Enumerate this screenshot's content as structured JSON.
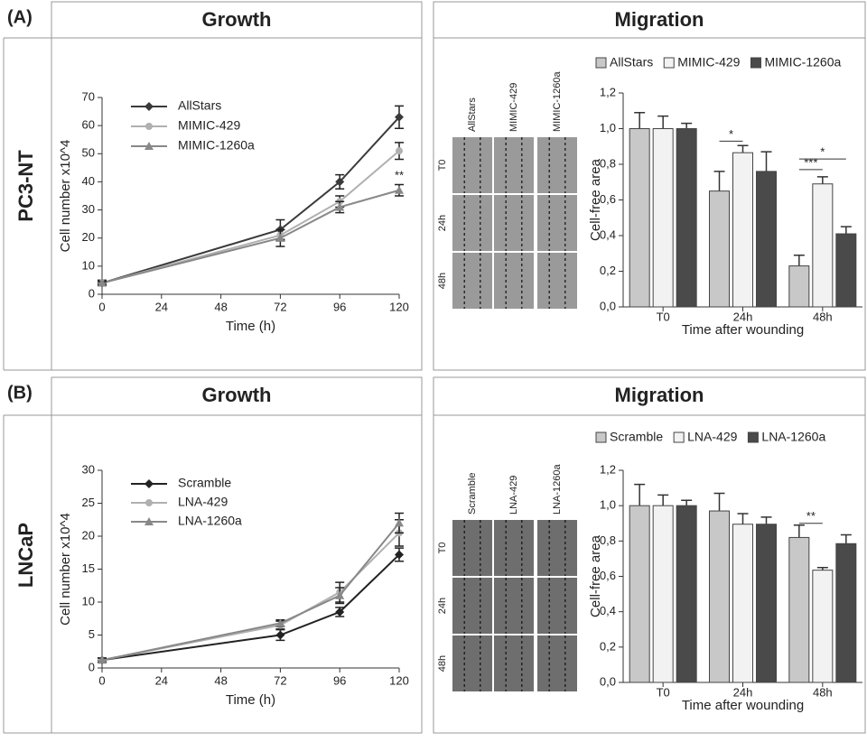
{
  "panels": [
    {
      "label": "(A)",
      "row_label": "PC3-NT",
      "growth_title": "Growth",
      "migration_title": "Migration",
      "image_columns": [
        "AllStars",
        "MIMIC-429",
        "MIMIC-1260a"
      ],
      "image_rows": [
        "T0",
        "24h",
        "48h"
      ]
    },
    {
      "label": "(B)",
      "row_label": "LNCaP",
      "growth_title": "Growth",
      "migration_title": "Migration",
      "image_columns": [
        "Scramble",
        "LNA-429",
        "LNA-1260a"
      ],
      "image_rows": [
        "T0",
        "24h",
        "48h"
      ]
    }
  ],
  "chart_data": [
    {
      "type": "line",
      "x_label": "Time (h)",
      "y_label": "Cell number x10^4",
      "x": [
        0,
        72,
        96,
        120
      ],
      "xlim": [
        0,
        120
      ],
      "xticks": [
        0,
        24,
        48,
        72,
        96,
        120
      ],
      "ylim": [
        0,
        70
      ],
      "yticks": [
        0,
        10,
        20,
        30,
        40,
        50,
        60,
        70
      ],
      "series": [
        {
          "name": "AllStars",
          "color": "#3a3a3a",
          "marker": "diamond",
          "values": [
            4,
            23,
            40,
            63
          ],
          "errors": [
            1,
            3.5,
            2.5,
            4
          ]
        },
        {
          "name": "MIMIC-429",
          "color": "#b0b0b0",
          "marker": "circle",
          "values": [
            4,
            21,
            33,
            51
          ],
          "errors": [
            0.5,
            2,
            2,
            3
          ]
        },
        {
          "name": "MIMIC-1260a",
          "color": "#888888",
          "marker": "triangle",
          "values": [
            4,
            20,
            31,
            37
          ],
          "errors": [
            0.5,
            3,
            2,
            2
          ]
        }
      ],
      "annotations": [
        {
          "text": "**",
          "x": 120,
          "y": 42
        }
      ]
    },
    {
      "type": "bar",
      "x_label": "Time after wounding",
      "y_label": "Cell-free area",
      "categories": [
        "T0",
        "24h",
        "48h"
      ],
      "ylim": [
        0,
        1.2
      ],
      "yticks": [
        {
          "value": 0,
          "label": "0,0"
        },
        {
          "value": 0.2,
          "label": "0,2"
        },
        {
          "value": 0.4,
          "label": "0,4"
        },
        {
          "value": 0.6,
          "label": "0,6"
        },
        {
          "value": 0.8,
          "label": "0,8"
        },
        {
          "value": 1,
          "label": "1,0"
        },
        {
          "value": 1.2,
          "label": "1,2"
        }
      ],
      "series": [
        {
          "name": "AllStars",
          "color": "#c8c8c8",
          "values": [
            1.0,
            0.65,
            0.23
          ],
          "errors": [
            0.09,
            0.11,
            0.06
          ]
        },
        {
          "name": "MIMIC-429",
          "color": "#f2f2f2",
          "values": [
            1.0,
            0.865,
            0.69
          ],
          "errors": [
            0.07,
            0.04,
            0.04
          ]
        },
        {
          "name": "MIMIC-1260a",
          "color": "#4a4a4a",
          "values": [
            1.0,
            0.76,
            0.41
          ],
          "errors": [
            0.03,
            0.11,
            0.04
          ]
        }
      ],
      "annotations": [
        {
          "text": "*",
          "category": "24h",
          "between": [
            "AllStars",
            "MIMIC-429"
          ],
          "y": 0.93
        },
        {
          "text": "***",
          "category": "48h",
          "between": [
            "AllStars",
            "MIMIC-429"
          ],
          "y": 0.77
        },
        {
          "text": "*",
          "category": "48h",
          "between": [
            "AllStars",
            "MIMIC-1260a"
          ],
          "y": 0.83
        }
      ]
    },
    {
      "type": "line",
      "x_label": "Time (h)",
      "y_label": "Cell number x10^4",
      "x": [
        0,
        72,
        96,
        120
      ],
      "xlim": [
        0,
        120
      ],
      "xticks": [
        0,
        24,
        48,
        72,
        96,
        120
      ],
      "ylim": [
        0,
        30
      ],
      "yticks": [
        0,
        5,
        10,
        15,
        20,
        25,
        30
      ],
      "series": [
        {
          "name": "Scramble",
          "color": "#222222",
          "marker": "diamond",
          "values": [
            1.2,
            5,
            8.5,
            17.2
          ],
          "errors": [
            0.3,
            0.8,
            0.7,
            1
          ]
        },
        {
          "name": "LNA-429",
          "color": "#b0b0b0",
          "marker": "circle",
          "values": [
            1.2,
            6.5,
            11.5,
            20.5
          ],
          "errors": [
            0.3,
            0.6,
            1.5,
            2
          ]
        },
        {
          "name": "LNA-1260a",
          "color": "#888888",
          "marker": "triangle",
          "values": [
            1.2,
            6.8,
            11,
            22
          ],
          "errors": [
            0.3,
            0.5,
            1.2,
            1.5
          ]
        }
      ]
    },
    {
      "type": "bar",
      "x_label": "Time after wounding",
      "y_label": "Cell-free area",
      "categories": [
        "T0",
        "24h",
        "48h"
      ],
      "ylim": [
        0,
        1.2
      ],
      "yticks": [
        {
          "value": 0,
          "label": "0,0"
        },
        {
          "value": 0.2,
          "label": "0,2"
        },
        {
          "value": 0.4,
          "label": "0,4"
        },
        {
          "value": 0.6,
          "label": "0,6"
        },
        {
          "value": 0.8,
          "label": "0,8"
        },
        {
          "value": 1,
          "label": "1,0"
        },
        {
          "value": 1.2,
          "label": "1,2"
        }
      ],
      "series": [
        {
          "name": "Scramble",
          "color": "#c8c8c8",
          "values": [
            1.0,
            0.97,
            0.82
          ],
          "errors": [
            0.12,
            0.1,
            0.07
          ]
        },
        {
          "name": "LNA-429",
          "color": "#f2f2f2",
          "values": [
            1.0,
            0.895,
            0.635
          ],
          "errors": [
            0.06,
            0.06,
            0.015
          ]
        },
        {
          "name": "LNA-1260a",
          "color": "#4a4a4a",
          "values": [
            1.0,
            0.895,
            0.785
          ],
          "errors": [
            0.03,
            0.04,
            0.05
          ]
        }
      ],
      "annotations": [
        {
          "text": "**",
          "category": "48h",
          "between": [
            "Scramble",
            "LNA-429"
          ],
          "y": 0.9
        }
      ]
    }
  ]
}
